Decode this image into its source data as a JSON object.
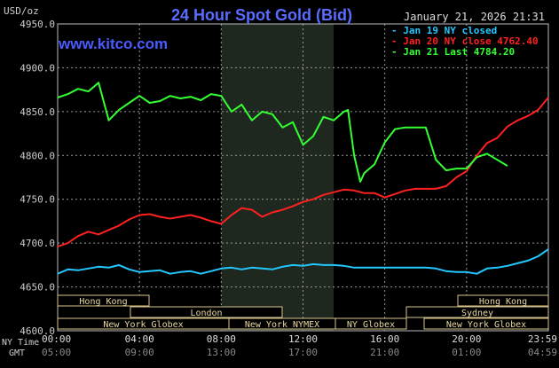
{
  "header": {
    "units": "USD/oz",
    "title": "24 Hour Spot Gold (Bid)",
    "datetime": "January 21, 2026 21:31",
    "watermark": "www.kitco.com"
  },
  "legend": [
    {
      "label": "Jan 19 NY closed",
      "color": "#22c8ff"
    },
    {
      "label": "Jan 20 NY close 4762.40",
      "color": "#ff2020"
    },
    {
      "label": "Jan 21 Last 4784.20",
      "color": "#33ff33"
    }
  ],
  "x_axis": {
    "row1_label": "NY Time",
    "row2_label": "GMT",
    "ny_ticks": [
      "00:00",
      "04:00",
      "08:00",
      "12:00",
      "16:00",
      "20:00",
      "23:59"
    ],
    "gmt_ticks": [
      "05:00",
      "09:00",
      "13:00",
      "17:00",
      "21:00",
      "01:00",
      "04:59"
    ]
  },
  "sessions": {
    "hong_kong_1": "Hong Kong",
    "hong_kong_2": "Hong Kong",
    "london": "London",
    "sydney": "Sydney",
    "new_york_globex_1": "New York Globex",
    "new_york_nymex": "New York NYMEX",
    "ny_globex": "NY Globex",
    "new_york_globex_2": "New York Globex"
  },
  "colors": {
    "background": "#000000",
    "grid": "#9a9a9a",
    "shade": "#1e281e",
    "title": "#5a6cff",
    "watermark": "#4a5cff",
    "axis_text": "#cccccc",
    "session_box": "#d8c48a"
  },
  "chart_data": {
    "type": "line",
    "title": "24 Hour Spot Gold (Bid)",
    "ylabel": "USD/oz",
    "xlabel": "NY Time",
    "ylim": [
      4600,
      4950
    ],
    "yticks": [
      4600,
      4650,
      4700,
      4750,
      4800,
      4850,
      4900,
      4950
    ],
    "x_unit": "hours since 00:00 NY time",
    "xlim": [
      0,
      24
    ],
    "shaded_range": [
      8,
      13.5
    ],
    "grid": true,
    "legend_position": "top-right",
    "series": [
      {
        "name": "Jan 19 NY closed",
        "color": "#22c8ff",
        "x": [
          0,
          0.5,
          1,
          1.5,
          2,
          2.5,
          3,
          3.5,
          4,
          4.5,
          5,
          5.5,
          6,
          6.5,
          7,
          7.5,
          8,
          8.5,
          9,
          9.5,
          10,
          10.5,
          11,
          11.5,
          12,
          12.5,
          13,
          13.5,
          14,
          14.5,
          15,
          15.5,
          16,
          16.5,
          17,
          17.5,
          18,
          18.5,
          19,
          19.5,
          20,
          20.5,
          21,
          21.5,
          22,
          22.5,
          23,
          23.5,
          24
        ],
        "y": [
          4665,
          4670,
          4669,
          4671,
          4673,
          4672,
          4675,
          4670,
          4667,
          4668,
          4669,
          4665,
          4667,
          4668,
          4665,
          4668,
          4671,
          4672,
          4670,
          4672,
          4671,
          4670,
          4673,
          4675,
          4674,
          4676,
          4675,
          4675,
          4674,
          4672,
          4672,
          4672,
          4672,
          4672,
          4672,
          4672,
          4672,
          4671,
          4668,
          4667,
          4667,
          4665,
          4671,
          4672,
          4674,
          4677,
          4680,
          4685,
          4693
        ]
      },
      {
        "name": "Jan 20 NY close 4762.40",
        "color": "#ff2020",
        "x": [
          0,
          0.5,
          1,
          1.5,
          2,
          2.5,
          3,
          3.5,
          4,
          4.5,
          5,
          5.5,
          6,
          6.5,
          7,
          7.5,
          8,
          8.5,
          9,
          9.5,
          10,
          10.5,
          11,
          11.5,
          12,
          12.5,
          13,
          13.5,
          14,
          14.5,
          15,
          15.5,
          16,
          16.5,
          17,
          17.5,
          18,
          18.5,
          19,
          19.5,
          20,
          20.5,
          21,
          21.5,
          22,
          22.5,
          23,
          23.5,
          24
        ],
        "y": [
          4696,
          4700,
          4708,
          4713,
          4710,
          4715,
          4720,
          4727,
          4732,
          4733,
          4730,
          4728,
          4730,
          4732,
          4729,
          4725,
          4722,
          4732,
          4740,
          4738,
          4730,
          4735,
          4738,
          4742,
          4747,
          4750,
          4755,
          4758,
          4761,
          4760,
          4757,
          4757,
          4752,
          4756,
          4760,
          4762,
          4762,
          4762,
          4765,
          4775,
          4782,
          4800,
          4814,
          4820,
          4833,
          4840,
          4845,
          4852,
          4866
        ]
      },
      {
        "name": "Jan 21 Last 4784.20",
        "color": "#33ff33",
        "x": [
          0,
          0.5,
          1,
          1.5,
          2,
          2.5,
          3,
          3.5,
          4,
          4.5,
          5,
          5.5,
          6,
          6.5,
          7,
          7.5,
          8,
          8.5,
          9,
          9.5,
          10,
          10.5,
          11,
          11.5,
          12,
          12.5,
          13,
          13.5,
          14,
          14.2,
          14.5,
          14.8,
          15,
          15.5,
          16,
          16.5,
          17,
          17.5,
          18,
          18.5,
          19,
          19.5,
          20,
          20.5,
          21,
          21.5,
          22
        ],
        "y": [
          4866,
          4870,
          4876,
          4873,
          4883,
          4840,
          4852,
          4860,
          4868,
          4860,
          4862,
          4868,
          4865,
          4867,
          4863,
          4870,
          4868,
          4850,
          4858,
          4840,
          4850,
          4847,
          4832,
          4838,
          4812,
          4822,
          4844,
          4840,
          4850,
          4852,
          4800,
          4770,
          4780,
          4790,
          4815,
          4830,
          4832,
          4832,
          4832,
          4795,
          4783,
          4785,
          4785,
          4798,
          4802,
          4795,
          4788
        ]
      }
    ]
  }
}
